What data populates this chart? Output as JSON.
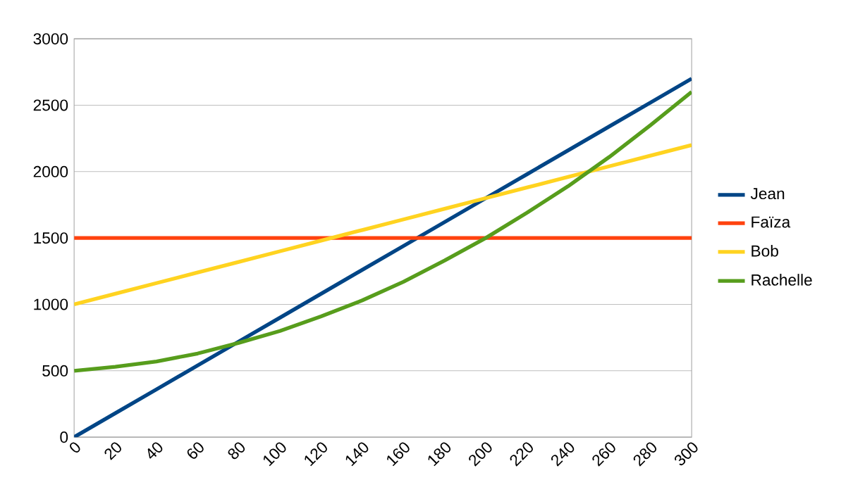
{
  "chart_data": {
    "type": "line",
    "x": [
      0,
      20,
      40,
      60,
      80,
      100,
      120,
      140,
      160,
      180,
      200,
      220,
      240,
      260,
      280,
      300
    ],
    "series": [
      {
        "name": "Jean",
        "color": "#004586",
        "values": [
          0,
          180,
          360,
          540,
          720,
          900,
          1080,
          1260,
          1440,
          1620,
          1800,
          1980,
          2160,
          2340,
          2520,
          2700
        ]
      },
      {
        "name": "Faïza",
        "color": "#ff420e",
        "values": [
          1500,
          1500,
          1500,
          1500,
          1500,
          1500,
          1500,
          1500,
          1500,
          1500,
          1500,
          1500,
          1500,
          1500,
          1500,
          1500
        ]
      },
      {
        "name": "Bob",
        "color": "#ffd320",
        "values": [
          1000,
          1080,
          1160,
          1240,
          1320,
          1400,
          1480,
          1560,
          1640,
          1720,
          1800,
          1880,
          1960,
          2040,
          2120,
          2200
        ]
      },
      {
        "name": "Rachelle",
        "color": "#579d1c",
        "values": [
          500,
          530,
          570,
          630,
          710,
          800,
          910,
          1030,
          1170,
          1330,
          1500,
          1690,
          1890,
          2110,
          2350,
          2600
        ]
      }
    ],
    "xlim": [
      0,
      300
    ],
    "xticks": [
      0,
      20,
      40,
      60,
      80,
      100,
      120,
      140,
      160,
      180,
      200,
      220,
      240,
      260,
      280,
      300
    ],
    "ylim": [
      0,
      3000
    ],
    "yticks": [
      0,
      500,
      1000,
      1500,
      2000,
      2500,
      3000
    ],
    "grid": "y",
    "legend": "right",
    "marker": "none",
    "line_style": "solid"
  }
}
